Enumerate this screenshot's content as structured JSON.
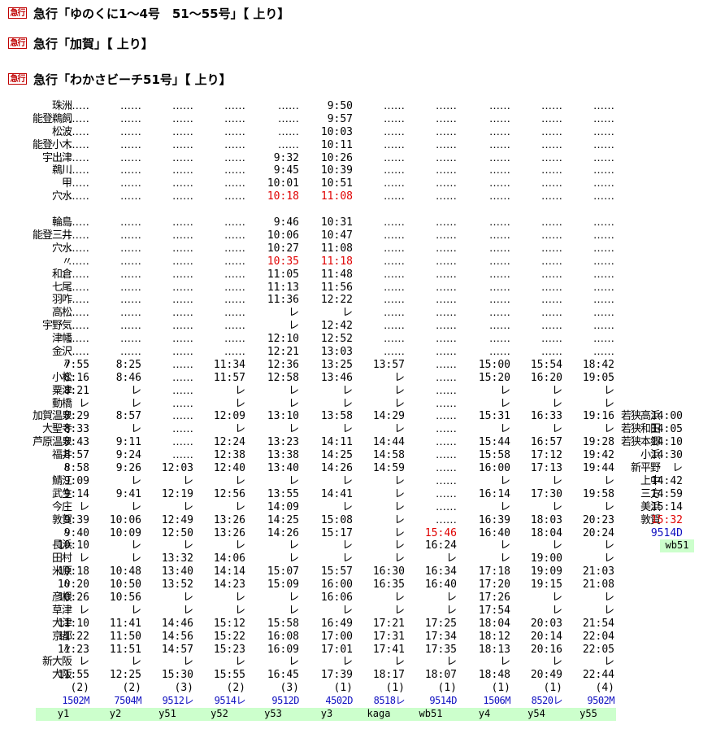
{
  "headers": [
    {
      "badge": "急行",
      "text": "急行「ゆのくに1〜4号　51〜55号」【 上り】"
    },
    {
      "badge": "急行",
      "text": "急行「加賀」【 上り】"
    },
    {
      "badge": "急行",
      "text": "急行「わかさビーチ51号」【 上り】"
    }
  ],
  "timetable": {
    "rows": [
      {
        "station": "珠洲",
        "times": [
          "‥‥‥",
          "‥‥‥",
          "‥‥‥",
          "‥‥‥",
          "‥‥‥",
          "9:50",
          "‥‥‥",
          "‥‥‥",
          "‥‥‥",
          "‥‥‥",
          "‥‥‥"
        ]
      },
      {
        "station": "能登鵜飼",
        "times": [
          "‥‥‥",
          "‥‥‥",
          "‥‥‥",
          "‥‥‥",
          "‥‥‥",
          "9:57",
          "‥‥‥",
          "‥‥‥",
          "‥‥‥",
          "‥‥‥",
          "‥‥‥"
        ]
      },
      {
        "station": "松波",
        "times": [
          "‥‥‥",
          "‥‥‥",
          "‥‥‥",
          "‥‥‥",
          "‥‥‥",
          "10:03",
          "‥‥‥",
          "‥‥‥",
          "‥‥‥",
          "‥‥‥",
          "‥‥‥"
        ]
      },
      {
        "station": "能登小木",
        "times": [
          "‥‥‥",
          "‥‥‥",
          "‥‥‥",
          "‥‥‥",
          "‥‥‥",
          "10:11",
          "‥‥‥",
          "‥‥‥",
          "‥‥‥",
          "‥‥‥",
          "‥‥‥"
        ]
      },
      {
        "station": "宇出津",
        "times": [
          "‥‥‥",
          "‥‥‥",
          "‥‥‥",
          "‥‥‥",
          "9:32",
          "10:26",
          "‥‥‥",
          "‥‥‥",
          "‥‥‥",
          "‥‥‥",
          "‥‥‥"
        ]
      },
      {
        "station": "鵜川",
        "times": [
          "‥‥‥",
          "‥‥‥",
          "‥‥‥",
          "‥‥‥",
          "9:45",
          "10:39",
          "‥‥‥",
          "‥‥‥",
          "‥‥‥",
          "‥‥‥",
          "‥‥‥"
        ]
      },
      {
        "station": "甲",
        "times": [
          "‥‥‥",
          "‥‥‥",
          "‥‥‥",
          "‥‥‥",
          "10:01",
          "10:51",
          "‥‥‥",
          "‥‥‥",
          "‥‥‥",
          "‥‥‥",
          "‥‥‥"
        ]
      },
      {
        "station": "穴水",
        "times": [
          "‥‥‥",
          "‥‥‥",
          "‥‥‥",
          "‥‥‥",
          "10:18",
          "11:08",
          "‥‥‥",
          "‥‥‥",
          "‥‥‥",
          "‥‥‥",
          "‥‥‥"
        ],
        "red": [
          4,
          5
        ]
      },
      {
        "gap": true,
        "station": "",
        "times": []
      },
      {
        "station": "輪島",
        "times": [
          "‥‥‥",
          "‥‥‥",
          "‥‥‥",
          "‥‥‥",
          "9:46",
          "10:31",
          "‥‥‥",
          "‥‥‥",
          "‥‥‥",
          "‥‥‥",
          "‥‥‥"
        ]
      },
      {
        "station": "能登三井",
        "times": [
          "‥‥‥",
          "‥‥‥",
          "‥‥‥",
          "‥‥‥",
          "10:06",
          "10:47",
          "‥‥‥",
          "‥‥‥",
          "‥‥‥",
          "‥‥‥",
          "‥‥‥"
        ]
      },
      {
        "station": "穴水",
        "times": [
          "‥‥‥",
          "‥‥‥",
          "‥‥‥",
          "‥‥‥",
          "10:27",
          "11:08",
          "‥‥‥",
          "‥‥‥",
          "‥‥‥",
          "‥‥‥",
          "‥‥‥"
        ]
      },
      {
        "station": "〃",
        "times": [
          "‥‥‥",
          "‥‥‥",
          "‥‥‥",
          "‥‥‥",
          "10:35",
          "11:18",
          "‥‥‥",
          "‥‥‥",
          "‥‥‥",
          "‥‥‥",
          "‥‥‥"
        ],
        "red": [
          4,
          5
        ]
      },
      {
        "station": "和倉",
        "times": [
          "‥‥‥",
          "‥‥‥",
          "‥‥‥",
          "‥‥‥",
          "11:05",
          "11:48",
          "‥‥‥",
          "‥‥‥",
          "‥‥‥",
          "‥‥‥",
          "‥‥‥"
        ]
      },
      {
        "station": "七尾",
        "times": [
          "‥‥‥",
          "‥‥‥",
          "‥‥‥",
          "‥‥‥",
          "11:13",
          "11:56",
          "‥‥‥",
          "‥‥‥",
          "‥‥‥",
          "‥‥‥",
          "‥‥‥"
        ]
      },
      {
        "station": "羽咋",
        "times": [
          "‥‥‥",
          "‥‥‥",
          "‥‥‥",
          "‥‥‥",
          "11:36",
          "12:22",
          "‥‥‥",
          "‥‥‥",
          "‥‥‥",
          "‥‥‥",
          "‥‥‥"
        ]
      },
      {
        "station": "高松",
        "times": [
          "‥‥‥",
          "‥‥‥",
          "‥‥‥",
          "‥‥‥",
          "レ",
          "レ",
          "‥‥‥",
          "‥‥‥",
          "‥‥‥",
          "‥‥‥",
          "‥‥‥"
        ]
      },
      {
        "station": "宇野気",
        "times": [
          "‥‥‥",
          "‥‥‥",
          "‥‥‥",
          "‥‥‥",
          "レ",
          "12:42",
          "‥‥‥",
          "‥‥‥",
          "‥‥‥",
          "‥‥‥",
          "‥‥‥"
        ]
      },
      {
        "station": "津幡",
        "times": [
          "‥‥‥",
          "‥‥‥",
          "‥‥‥",
          "‥‥‥",
          "12:10",
          "12:52",
          "‥‥‥",
          "‥‥‥",
          "‥‥‥",
          "‥‥‥",
          "‥‥‥"
        ]
      },
      {
        "station": "金沢",
        "times": [
          "‥‥‥",
          "‥‥‥",
          "‥‥‥",
          "‥‥‥",
          "12:21",
          "13:03",
          "‥‥‥",
          "‥‥‥",
          "‥‥‥",
          "‥‥‥",
          "‥‥‥"
        ]
      },
      {
        "station": "〃",
        "times": [
          "7:55",
          "8:25",
          "‥‥‥",
          "11:34",
          "12:36",
          "13:25",
          "13:57",
          "‥‥‥",
          "15:00",
          "15:54",
          "18:42"
        ]
      },
      {
        "station": "小松",
        "times": [
          "8:16",
          "8:46",
          "‥‥‥",
          "11:57",
          "12:58",
          "13:46",
          "レ",
          "‥‥‥",
          "15:20",
          "16:20",
          "19:05"
        ]
      },
      {
        "station": "粟津",
        "times": [
          "8:21",
          "レ",
          "‥‥‥",
          "レ",
          "レ",
          "レ",
          "レ",
          "‥‥‥",
          "レ",
          "レ",
          "レ"
        ]
      },
      {
        "station": "動橋",
        "times": [
          "レ",
          "レ",
          "‥‥‥",
          "レ",
          "レ",
          "レ",
          "レ",
          "‥‥‥",
          "レ",
          "レ",
          "レ"
        ]
      },
      {
        "station": "加賀温泉",
        "times": [
          "8:29",
          "8:57",
          "‥‥‥",
          "12:09",
          "13:10",
          "13:58",
          "14:29",
          "‥‥‥",
          "15:31",
          "16:33",
          "19:16"
        ],
        "rs": "若狭高浜",
        "rt": "14:00"
      },
      {
        "station": "大聖寺",
        "times": [
          "8:33",
          "レ",
          "‥‥‥",
          "レ",
          "レ",
          "レ",
          "レ",
          "‥‥‥",
          "レ",
          "レ",
          "レ"
        ],
        "rs": "若狭和田",
        "rt": "14:05"
      },
      {
        "station": "芦原温泉",
        "times": [
          "8:43",
          "9:11",
          "‥‥‥",
          "12:24",
          "13:23",
          "14:11",
          "14:44",
          "‥‥‥",
          "15:44",
          "16:57",
          "19:28"
        ],
        "rs": "若狭本郷",
        "rt": "14:10"
      },
      {
        "station": "福井",
        "times": [
          "8:57",
          "9:24",
          "‥‥‥",
          "12:38",
          "13:38",
          "14:25",
          "14:58",
          "‥‥‥",
          "15:58",
          "17:12",
          "19:42"
        ],
        "rs": "小浜",
        "rt": "14:30"
      },
      {
        "station": "〃",
        "times": [
          "8:58",
          "9:26",
          "12:03",
          "12:40",
          "13:40",
          "14:26",
          "14:59",
          "‥‥‥",
          "16:00",
          "17:13",
          "19:44"
        ],
        "rs": "新平野",
        "rt": "レ"
      },
      {
        "station": "鯖江",
        "times": [
          "9:09",
          "レ",
          "レ",
          "レ",
          "レ",
          "レ",
          "レ",
          "‥‥‥",
          "レ",
          "レ",
          "レ"
        ],
        "rs": "上中",
        "rt": "14:42"
      },
      {
        "station": "武生",
        "times": [
          "9:14",
          "9:41",
          "12:19",
          "12:56",
          "13:55",
          "14:41",
          "レ",
          "‥‥‥",
          "16:14",
          "17:30",
          "19:58"
        ],
        "rs": "三方",
        "rt": "14:59"
      },
      {
        "station": "今庄",
        "times": [
          "レ",
          "レ",
          "レ",
          "レ",
          "14:09",
          "レ",
          "レ",
          "‥‥‥",
          "レ",
          "レ",
          "レ"
        ],
        "rs": "美浜",
        "rt": "15:14"
      },
      {
        "station": "敦賀",
        "times": [
          "9:39",
          "10:06",
          "12:49",
          "13:26",
          "14:25",
          "15:08",
          "レ",
          "‥‥‥",
          "16:39",
          "18:03",
          "20:23"
        ],
        "rs": "敦賀",
        "rt": "15:32",
        "rtred": true
      },
      {
        "station": "〃",
        "times": [
          "9:40",
          "10:09",
          "12:50",
          "13:26",
          "14:26",
          "15:17",
          "レ",
          "15:46",
          "16:40",
          "18:04",
          "20:24"
        ],
        "red": [
          7
        ],
        "rt": "9514D",
        "rtblue": true
      },
      {
        "station": "長浜",
        "times": [
          "10:10",
          "レ",
          "レ",
          "レ",
          "レ",
          "レ",
          "レ",
          "16:24",
          "レ",
          "レ",
          "レ"
        ],
        "rlbl": "wb51"
      },
      {
        "station": "田村",
        "times": [
          "レ",
          "レ",
          "13:32",
          "14:06",
          "レ",
          "レ",
          "レ",
          "レ",
          "レ",
          "19:00",
          "レ"
        ]
      },
      {
        "station": "米原",
        "times": [
          "10:18",
          "10:48",
          "13:40",
          "14:14",
          "15:07",
          "15:57",
          "16:30",
          "16:34",
          "17:18",
          "19:09",
          "21:03"
        ]
      },
      {
        "station": "〃",
        "times": [
          "10:20",
          "10:50",
          "13:52",
          "14:23",
          "15:09",
          "16:00",
          "16:35",
          "16:40",
          "17:20",
          "19:15",
          "21:08"
        ]
      },
      {
        "station": "彦根",
        "times": [
          "10:26",
          "10:56",
          "レ",
          "レ",
          "レ",
          "16:06",
          "レ",
          "レ",
          "17:26",
          "レ",
          "レ"
        ]
      },
      {
        "station": "草津",
        "times": [
          "レ",
          "レ",
          "レ",
          "レ",
          "レ",
          "レ",
          "レ",
          "レ",
          "17:54",
          "レ",
          "レ"
        ]
      },
      {
        "station": "大津",
        "times": [
          "11:10",
          "11:41",
          "14:46",
          "15:12",
          "15:58",
          "16:49",
          "17:21",
          "17:25",
          "18:04",
          "20:03",
          "21:54"
        ]
      },
      {
        "station": "京都",
        "times": [
          "11:22",
          "11:50",
          "14:56",
          "15:22",
          "16:08",
          "17:00",
          "17:31",
          "17:34",
          "18:12",
          "20:14",
          "22:04"
        ]
      },
      {
        "station": "〃",
        "times": [
          "11:23",
          "11:51",
          "14:57",
          "15:23",
          "16:09",
          "17:01",
          "17:41",
          "17:35",
          "18:13",
          "20:16",
          "22:05"
        ]
      },
      {
        "station": "新大阪",
        "times": [
          "レ",
          "レ",
          "レ",
          "レ",
          "レ",
          "レ",
          "レ",
          "レ",
          "レ",
          "レ",
          "レ"
        ]
      },
      {
        "station": "大阪",
        "times": [
          "11:55",
          "12:25",
          "15:30",
          "15:55",
          "16:45",
          "17:39",
          "18:17",
          "18:07",
          "18:48",
          "20:49",
          "22:44"
        ]
      }
    ],
    "cars": [
      "(2)",
      "(2)",
      "(3)",
      "(2)",
      "(3)",
      "(1)",
      "(1)",
      "(1)",
      "(1)",
      "(1)",
      "(4)"
    ],
    "train_numbers": [
      "1502M",
      "7504M",
      "9512レ",
      "9514レ",
      "9512D",
      "4502D",
      "8518レ",
      "9514D",
      "1506M",
      "8520レ",
      "9502M"
    ],
    "labels": [
      "y1",
      "y2",
      "y51",
      "y52",
      "y53",
      "y3",
      "kaga",
      "wb51",
      "y4",
      "y54",
      "y55"
    ]
  }
}
